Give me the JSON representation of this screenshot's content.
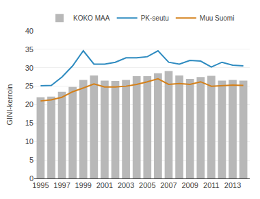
{
  "chart_data": {
    "type": "bar",
    "ylabel": "GINI-kerroin",
    "x": [
      1995,
      1996,
      1997,
      1998,
      1999,
      2000,
      2001,
      2002,
      2003,
      2004,
      2005,
      2006,
      2007,
      2008,
      2009,
      2010,
      2011,
      2012,
      2013,
      2014
    ],
    "series": [
      {
        "name": "KOKO MAA",
        "type": "bar",
        "color": "#b8b8b8",
        "values": [
          22.0,
          22.2,
          23.5,
          24.8,
          26.7,
          27.9,
          26.5,
          26.4,
          26.7,
          27.7,
          27.7,
          28.5,
          29.1,
          27.9,
          27.0,
          27.5,
          27.8,
          26.5,
          26.7,
          26.5
        ]
      },
      {
        "name": "PK-seutu",
        "type": "line",
        "color": "#2e8bc0",
        "values": [
          25.1,
          25.2,
          27.5,
          30.5,
          34.6,
          31.0,
          31.0,
          31.5,
          32.7,
          32.7,
          33.0,
          34.6,
          31.5,
          31.0,
          32.0,
          31.8,
          30.2,
          31.5,
          30.7,
          30.5
        ]
      },
      {
        "name": "Muu Suomi",
        "type": "line",
        "color": "#d4801a",
        "values": [
          21.0,
          21.3,
          22.0,
          23.5,
          24.5,
          25.6,
          24.8,
          24.8,
          25.0,
          25.5,
          26.2,
          27.0,
          25.5,
          25.7,
          25.5,
          26.2,
          25.0,
          25.2,
          25.3,
          25.2
        ]
      }
    ],
    "xlim": [
      1994.4,
      2014.6
    ],
    "xticks": [
      1995,
      1997,
      1999,
      2001,
      2003,
      2005,
      2007,
      2009,
      2011,
      2013
    ],
    "ylim": [
      0,
      40
    ],
    "yticks": [
      0,
      5,
      10,
      15,
      20,
      25,
      30,
      35,
      40
    ],
    "grid": "y",
    "legend": "top"
  }
}
